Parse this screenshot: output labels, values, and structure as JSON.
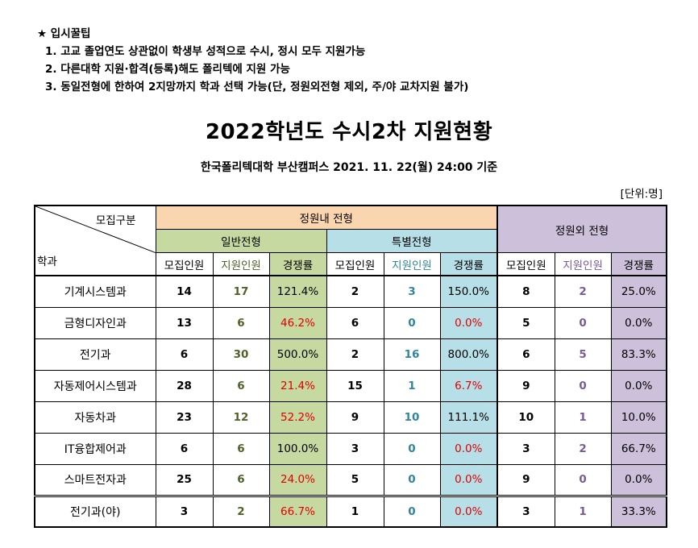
{
  "tips": {
    "heading": "★ 입시꿀팁",
    "items": [
      "1. 고교 졸업연도 상관없이 학생부 성적으로 수시, 정시 모두 지원가능",
      "2. 다른대학 지원·합격(등록)해도 폴리텍에 지원 가능",
      "3. 동일전형에 한하여 2지망까지 학과 선택 가능(단, 정원외전형 제외, 주/야 교차지원 불가)"
    ]
  },
  "title": "2022학년도 수시2차 지원현황",
  "subtitle": "한국폴리텍대학 부산캠퍼스  2021. 11. 22(월) 24:00 기준",
  "unit": "[단위:명]",
  "colors": {
    "peach": "#fad6b0",
    "green": "#c6d9a0",
    "blue": "#b7dfe8",
    "purple": "#ccc0da",
    "red": "#e00000"
  },
  "table": {
    "corner_top": "모집구분",
    "corner_bottom": "학과",
    "group_in": "정원내 전형",
    "group_out": "정원외 전형",
    "sub_general": "일반전형",
    "sub_special": "특별전형",
    "col_recruit": "모집인원",
    "col_apply": "지원인원",
    "col_rate": "경쟁률",
    "rows": [
      {
        "dept": "기계시스템과",
        "g": [
          "14",
          "17",
          "121.4%"
        ],
        "s": [
          "2",
          "3",
          "150.0%"
        ],
        "o": [
          "8",
          "2",
          "25.0%"
        ]
      },
      {
        "dept": "금형디자인과",
        "g": [
          "13",
          "6",
          "46.2%"
        ],
        "s": [
          "6",
          "0",
          "0.0%"
        ],
        "o": [
          "5",
          "0",
          "0.0%"
        ]
      },
      {
        "dept": "전기과",
        "g": [
          "6",
          "30",
          "500.0%"
        ],
        "s": [
          "2",
          "16",
          "800.0%"
        ],
        "o": [
          "6",
          "5",
          "83.3%"
        ]
      },
      {
        "dept": "자동제어시스템과",
        "g": [
          "28",
          "6",
          "21.4%"
        ],
        "s": [
          "15",
          "1",
          "6.7%"
        ],
        "o": [
          "9",
          "0",
          "0.0%"
        ]
      },
      {
        "dept": "자동차과",
        "g": [
          "23",
          "12",
          "52.2%"
        ],
        "s": [
          "9",
          "10",
          "111.1%"
        ],
        "o": [
          "10",
          "1",
          "10.0%"
        ]
      },
      {
        "dept": "IT융합제어과",
        "g": [
          "6",
          "6",
          "100.0%"
        ],
        "s": [
          "3",
          "0",
          "0.0%"
        ],
        "o": [
          "3",
          "2",
          "66.7%"
        ]
      },
      {
        "dept": "스마트전자과",
        "g": [
          "25",
          "6",
          "24.0%"
        ],
        "s": [
          "5",
          "0",
          "0.0%"
        ],
        "o": [
          "9",
          "0",
          "0.0%"
        ]
      },
      {
        "dept": "전기과(야)",
        "g": [
          "3",
          "2",
          "66.7%"
        ],
        "s": [
          "1",
          "0",
          "0.0%"
        ],
        "o": [
          "3",
          "1",
          "33.3%"
        ]
      }
    ]
  }
}
